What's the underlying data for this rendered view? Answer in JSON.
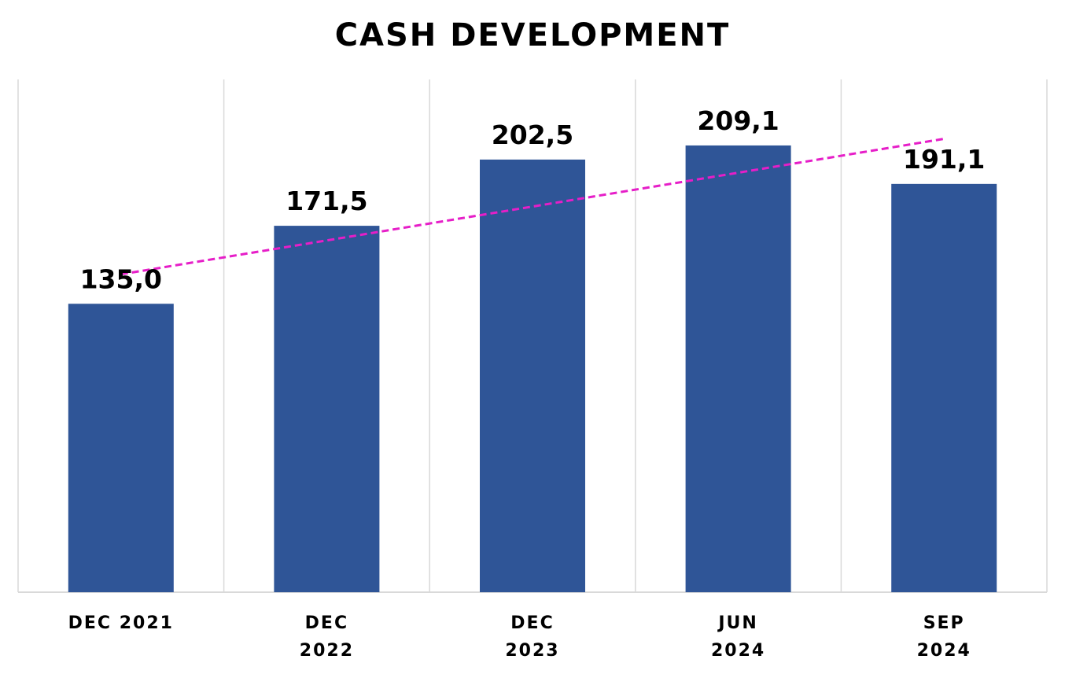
{
  "chart_data": {
    "type": "bar",
    "title": "CASH DEVELOPMENT",
    "categories": [
      "DEC 2021",
      "DEC 2022",
      "DEC 2023",
      "JUN 2024",
      "SEP 2024"
    ],
    "category_lines": [
      [
        "DEC 2021"
      ],
      [
        "DEC",
        "2022"
      ],
      [
        "DEC",
        "2023"
      ],
      [
        "JUN",
        "2024"
      ],
      [
        "SEP",
        "2024"
      ]
    ],
    "values": [
      135.0,
      171.5,
      202.5,
      209.1,
      191.1
    ],
    "data_labels": [
      "135,0",
      "171,5",
      "202,5",
      "209,1",
      "191,1"
    ],
    "ylim": [
      0,
      240
    ],
    "xlabel": "",
    "ylabel": "",
    "grid": "vertical",
    "legend": "none",
    "trendline": {
      "type": "linear",
      "style": "dashed",
      "start_value": 148.8,
      "end_value": 212.2
    },
    "colors": {
      "bar": "#2F5597",
      "trendline": "#E61EC8",
      "grid": "#D9D9D9",
      "text": "#000000"
    }
  }
}
